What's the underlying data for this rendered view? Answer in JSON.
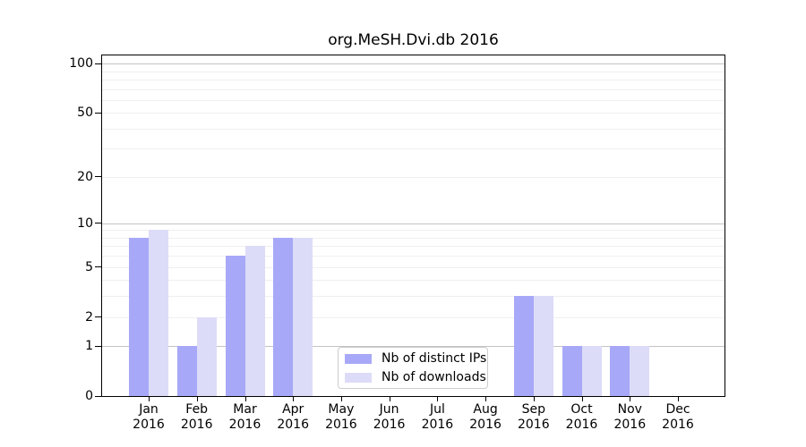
{
  "chart_data": {
    "type": "bar",
    "title": "org.MeSH.Dvi.db 2016",
    "categories": [
      "Jan",
      "Feb",
      "Mar",
      "Apr",
      "May",
      "Jun",
      "Jul",
      "Aug",
      "Sep",
      "Oct",
      "Nov",
      "Dec"
    ],
    "x_tick_second_line": "2016",
    "series": [
      {
        "name": "Nb of distinct IPs",
        "color": "#a8a8f8",
        "values": [
          8,
          1,
          6,
          8,
          0,
          0,
          0,
          0,
          3,
          1,
          1,
          0
        ]
      },
      {
        "name": "Nb of downloads",
        "color": "#dcdcf8",
        "values": [
          9,
          2,
          7,
          8,
          0,
          0,
          0,
          0,
          3,
          1,
          1,
          0
        ]
      }
    ],
    "y_axis": {
      "scale": "log10(1+value)",
      "tick_labels": [
        0,
        1,
        2,
        5,
        10,
        20,
        50,
        100
      ],
      "major_gridlines": [
        1,
        10,
        100
      ],
      "minor_gridlines": [
        2,
        3,
        4,
        5,
        6,
        7,
        8,
        9,
        20,
        30,
        40,
        50,
        60,
        70,
        80,
        90
      ],
      "max_value": 112
    },
    "legend_position": "lower center",
    "grid": true
  },
  "colors": {
    "background": "#ffffff",
    "axis": "#000000",
    "grid_major": "#c3c3c3",
    "grid_minor": "#efefef",
    "legend_border": "#cccccc",
    "text": "#000000"
  }
}
